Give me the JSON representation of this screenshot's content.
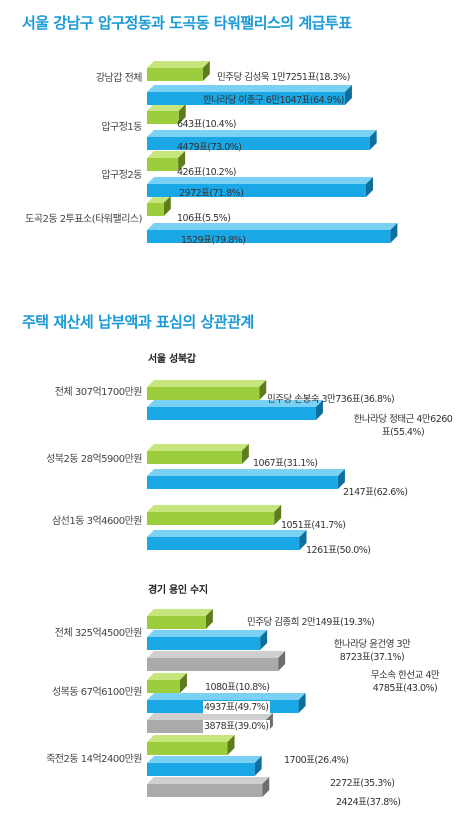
{
  "titles": {
    "t1": "서울 강남구 압구정동과 도곡동 타워팰리스의 계급투표",
    "t2": "주택 재산세 납부액과 표심의 상관관계"
  },
  "colors": {
    "green": "#9ccd3c",
    "blue": "#1aa7e6",
    "gray": "#aaaaaa"
  },
  "chart_data": [
    {
      "type": "bar",
      "title": "서울 강남구 압구정동과 도곡동 타워팰리스의 계급투표",
      "categories": [
        "강남갑 전체",
        "압구정1동",
        "압구정2동",
        "도곡2동 2투표소(타워팰리스)"
      ],
      "series": [
        {
          "name": "민주당",
          "color": "green",
          "values": [
            18.3,
            10.4,
            10.2,
            5.5
          ],
          "labels": [
            "민주당 김성욱 1만7251표(18.3%)",
            "643표(10.4%)",
            "426표(10.2%)",
            "106표(5.5%)"
          ]
        },
        {
          "name": "한나라당",
          "color": "blue",
          "values": [
            64.9,
            73.0,
            71.8,
            79.8
          ],
          "labels": [
            "한나라당 이종구 6만1047표(64.9%)",
            "4479표(73.0%)",
            "2972표(71.8%)",
            "1529표(79.8%)"
          ]
        }
      ]
    },
    {
      "type": "bar",
      "title": "주택 재산세 납부액과 표심의 상관관계",
      "subtitle": "서울 성북갑",
      "categories": [
        "전체 307억1700만원",
        "성북2동 28억5900만원",
        "삼선1동 3억4600만원"
      ],
      "series": [
        {
          "name": "민주당",
          "color": "green",
          "values": [
            36.8,
            31.1,
            41.7
          ],
          "labels": [
            "민주당 손봉숙 3만736표(36.8%)",
            "1067표(31.1%)",
            "1051표(41.7%)"
          ]
        },
        {
          "name": "한나라당",
          "color": "blue",
          "values": [
            55.4,
            62.6,
            50.0
          ],
          "labels": [
            "한나라당 정태근 4만6260표(55.4%)",
            "2147표(62.6%)",
            "1261표(50.0%)"
          ]
        }
      ]
    },
    {
      "type": "bar",
      "subtitle": "경기 용인 수지",
      "categories": [
        "전체 325억4500만원",
        "성복동 67억6100만원",
        "죽전2동 14억2400만원"
      ],
      "series": [
        {
          "name": "민주당",
          "color": "green",
          "values": [
            19.3,
            10.8,
            26.4
          ],
          "labels": [
            "민주당 김종희 2만149표(19.3%)",
            "1080표(10.8%)",
            "1700표(26.4%)"
          ]
        },
        {
          "name": "한나라당",
          "color": "blue",
          "values": [
            37.1,
            49.7,
            35.3
          ],
          "labels": [
            "한나라당 윤건영 3만8723표(37.1%)",
            "4937표(49.7%)",
            "2272표(35.3%)"
          ]
        },
        {
          "name": "무소속",
          "color": "gray",
          "values": [
            43.0,
            39.0,
            37.8
          ],
          "labels": [
            "무소속 한선교 4만4785표(43.0%)",
            "3878표(39.0%)",
            "2424표(37.8%)"
          ]
        }
      ]
    }
  ]
}
